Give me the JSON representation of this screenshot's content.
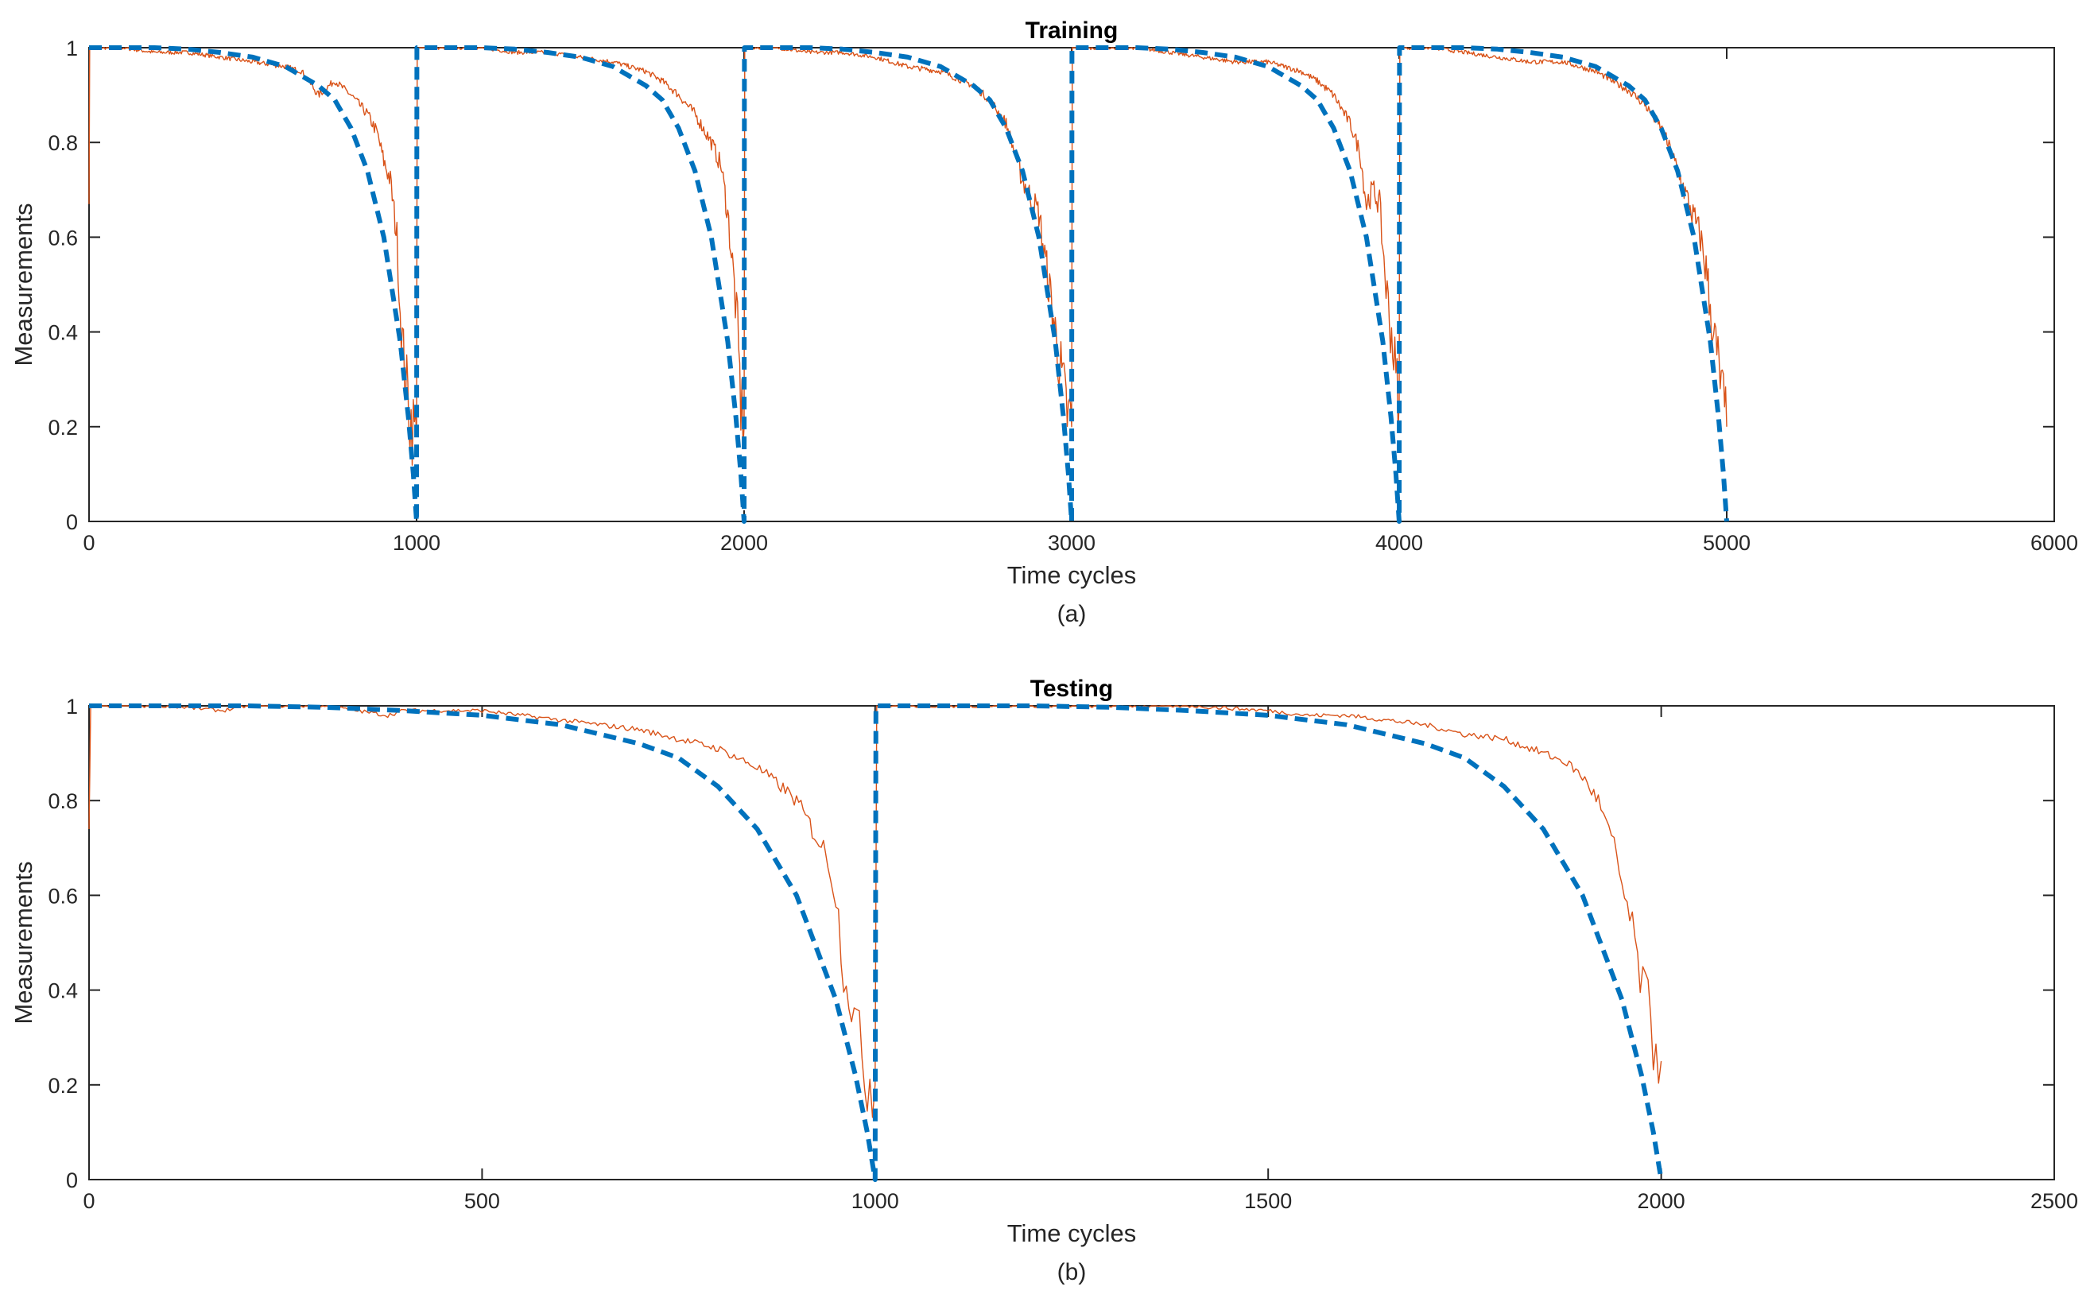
{
  "chart_data": [
    {
      "type": "line",
      "title": "Training",
      "xlabel": "Time cycles",
      "ylabel": "Measurements",
      "caption": "(a)",
      "xlim": [
        0,
        6000
      ],
      "ylim": [
        0,
        1
      ],
      "xticks": [
        "0",
        "1000",
        "2000",
        "3000",
        "4000",
        "5000",
        "6000"
      ],
      "yticks": [
        "0",
        "0.2",
        "0.4",
        "0.6",
        "0.8",
        "1"
      ],
      "grid": false,
      "legend": "none",
      "series": [
        {
          "color": "#D95319",
          "style": "solid-thin-noisy",
          "x": [
            0,
            2,
            100,
            200,
            300,
            400,
            500,
            600,
            650,
            700,
            750,
            800,
            850,
            880,
            900,
            920,
            940,
            950,
            960,
            970,
            980,
            990,
            1000,
            1002,
            1100,
            1200,
            1300,
            1400,
            1500,
            1600,
            1700,
            1750,
            1800,
            1850,
            1900,
            1930,
            1950,
            1970,
            1980,
            1990,
            2000,
            2002,
            2100,
            2200,
            2300,
            2400,
            2500,
            2600,
            2700,
            2750,
            2800,
            2850,
            2900,
            2930,
            2950,
            2970,
            2980,
            2990,
            3000,
            3002,
            3100,
            3200,
            3300,
            3400,
            3500,
            3600,
            3700,
            3750,
            3800,
            3850,
            3880,
            3900,
            3920,
            3940,
            3950,
            3960,
            3970,
            3980,
            3990,
            4000,
            4002,
            4100,
            4200,
            4300,
            4400,
            4500,
            4600,
            4650,
            4700,
            4750,
            4800,
            4830,
            4850,
            4870,
            4900,
            4920,
            4940,
            4950,
            4960,
            4970,
            4980,
            4990,
            5000
          ],
          "y": [
            0.67,
            1.0,
            1.0,
            0.99,
            0.99,
            0.98,
            0.97,
            0.96,
            0.95,
            0.9,
            0.93,
            0.9,
            0.86,
            0.82,
            0.76,
            0.72,
            0.6,
            0.45,
            0.35,
            0.28,
            0.22,
            0.2,
            0.18,
            1.0,
            1.0,
            1.0,
            0.99,
            0.99,
            0.98,
            0.97,
            0.95,
            0.93,
            0.9,
            0.86,
            0.8,
            0.75,
            0.65,
            0.5,
            0.4,
            0.25,
            0.2,
            1.0,
            1.0,
            0.99,
            0.99,
            0.98,
            0.96,
            0.95,
            0.92,
            0.89,
            0.84,
            0.72,
            0.65,
            0.5,
            0.4,
            0.3,
            0.25,
            0.22,
            0.2,
            1.0,
            1.0,
            1.0,
            0.99,
            0.98,
            0.97,
            0.97,
            0.95,
            0.93,
            0.9,
            0.84,
            0.78,
            0.67,
            0.7,
            0.67,
            0.58,
            0.5,
            0.43,
            0.38,
            0.3,
            0.25,
            1.0,
            1.0,
            0.99,
            0.98,
            0.97,
            0.97,
            0.95,
            0.93,
            0.91,
            0.88,
            0.83,
            0.78,
            0.74,
            0.7,
            0.64,
            0.6,
            0.52,
            0.45,
            0.4,
            0.35,
            0.3,
            0.24,
            0.2
          ]
        },
        {
          "color": "#0072BD",
          "style": "dashed-thick",
          "x": [
            0,
            100,
            200,
            300,
            400,
            500,
            600,
            700,
            750,
            800,
            850,
            900,
            950,
            975,
            990,
            1000,
            1001,
            1100,
            1200,
            1300,
            1400,
            1500,
            1600,
            1700,
            1750,
            1800,
            1850,
            1900,
            1950,
            1975,
            1990,
            2000,
            2001,
            2100,
            2200,
            2300,
            2400,
            2500,
            2600,
            2700,
            2750,
            2800,
            2850,
            2900,
            2950,
            2975,
            2990,
            3000,
            3001,
            3100,
            3200,
            3300,
            3400,
            3500,
            3600,
            3700,
            3750,
            3800,
            3850,
            3900,
            3950,
            3975,
            3990,
            4000,
            4001,
            4100,
            4200,
            4300,
            4400,
            4500,
            4600,
            4700,
            4750,
            4800,
            4850,
            4900,
            4950,
            4975,
            4990,
            5000
          ],
          "y": [
            1.0,
            1.0,
            1.0,
            0.997,
            0.99,
            0.98,
            0.96,
            0.92,
            0.89,
            0.83,
            0.74,
            0.6,
            0.38,
            0.22,
            0.1,
            0.0,
            1.0,
            1.0,
            1.0,
            0.997,
            0.99,
            0.98,
            0.96,
            0.92,
            0.89,
            0.83,
            0.74,
            0.6,
            0.38,
            0.22,
            0.1,
            0.0,
            1.0,
            1.0,
            1.0,
            0.997,
            0.99,
            0.98,
            0.96,
            0.92,
            0.89,
            0.83,
            0.74,
            0.6,
            0.38,
            0.22,
            0.1,
            0.0,
            1.0,
            1.0,
            1.0,
            0.997,
            0.99,
            0.98,
            0.96,
            0.92,
            0.89,
            0.83,
            0.74,
            0.6,
            0.38,
            0.22,
            0.1,
            0.0,
            1.0,
            1.0,
            1.0,
            0.997,
            0.99,
            0.98,
            0.96,
            0.92,
            0.89,
            0.83,
            0.74,
            0.6,
            0.38,
            0.22,
            0.1,
            0.0
          ]
        }
      ]
    },
    {
      "type": "line",
      "title": "Testing",
      "xlabel": "Time cycles",
      "ylabel": "Measurements",
      "caption": "(b)",
      "xlim": [
        0,
        2500
      ],
      "ylim": [
        0,
        1
      ],
      "xticks": [
        "0",
        "500",
        "1000",
        "1500",
        "2000",
        "2500"
      ],
      "yticks": [
        "0",
        "0.2",
        "0.4",
        "0.6",
        "0.8",
        "1"
      ],
      "grid": false,
      "legend": "none",
      "series": [
        {
          "color": "#D95319",
          "style": "solid-thin-noisy",
          "x": [
            0,
            2,
            100,
            170,
            200,
            300,
            380,
            400,
            500,
            600,
            650,
            700,
            750,
            800,
            850,
            880,
            900,
            920,
            940,
            950,
            960,
            970,
            980,
            990,
            1000,
            1002,
            1100,
            1200,
            1300,
            1400,
            1500,
            1550,
            1600,
            1650,
            1700,
            1750,
            1800,
            1850,
            1880,
            1900,
            1920,
            1930,
            1940,
            1950,
            1960,
            1970,
            1980,
            1990,
            2000
          ],
          "y": [
            0.74,
            1.0,
            1.0,
            0.99,
            1.0,
            1.0,
            0.98,
            0.99,
            0.99,
            0.97,
            0.96,
            0.95,
            0.93,
            0.91,
            0.87,
            0.83,
            0.8,
            0.74,
            0.68,
            0.6,
            0.45,
            0.38,
            0.28,
            0.22,
            0.2,
            1.0,
            1.0,
            1.0,
            1.0,
            1.0,
            0.99,
            0.98,
            0.98,
            0.97,
            0.96,
            0.94,
            0.93,
            0.9,
            0.88,
            0.85,
            0.8,
            0.75,
            0.7,
            0.62,
            0.55,
            0.46,
            0.38,
            0.3,
            0.25
          ]
        },
        {
          "color": "#0072BD",
          "style": "dashed-thick",
          "x": [
            0,
            100,
            200,
            300,
            400,
            500,
            600,
            700,
            750,
            800,
            850,
            900,
            950,
            975,
            990,
            1000,
            1001,
            1100,
            1200,
            1300,
            1400,
            1500,
            1600,
            1700,
            1750,
            1800,
            1850,
            1900,
            1950,
            1975,
            1990,
            2000
          ],
          "y": [
            1.0,
            1.0,
            1.0,
            0.997,
            0.99,
            0.98,
            0.96,
            0.92,
            0.89,
            0.83,
            0.74,
            0.6,
            0.38,
            0.22,
            0.1,
            0.0,
            1.0,
            1.0,
            1.0,
            0.997,
            0.99,
            0.98,
            0.96,
            0.92,
            0.89,
            0.83,
            0.74,
            0.6,
            0.38,
            0.22,
            0.1,
            0.0
          ]
        }
      ]
    }
  ]
}
